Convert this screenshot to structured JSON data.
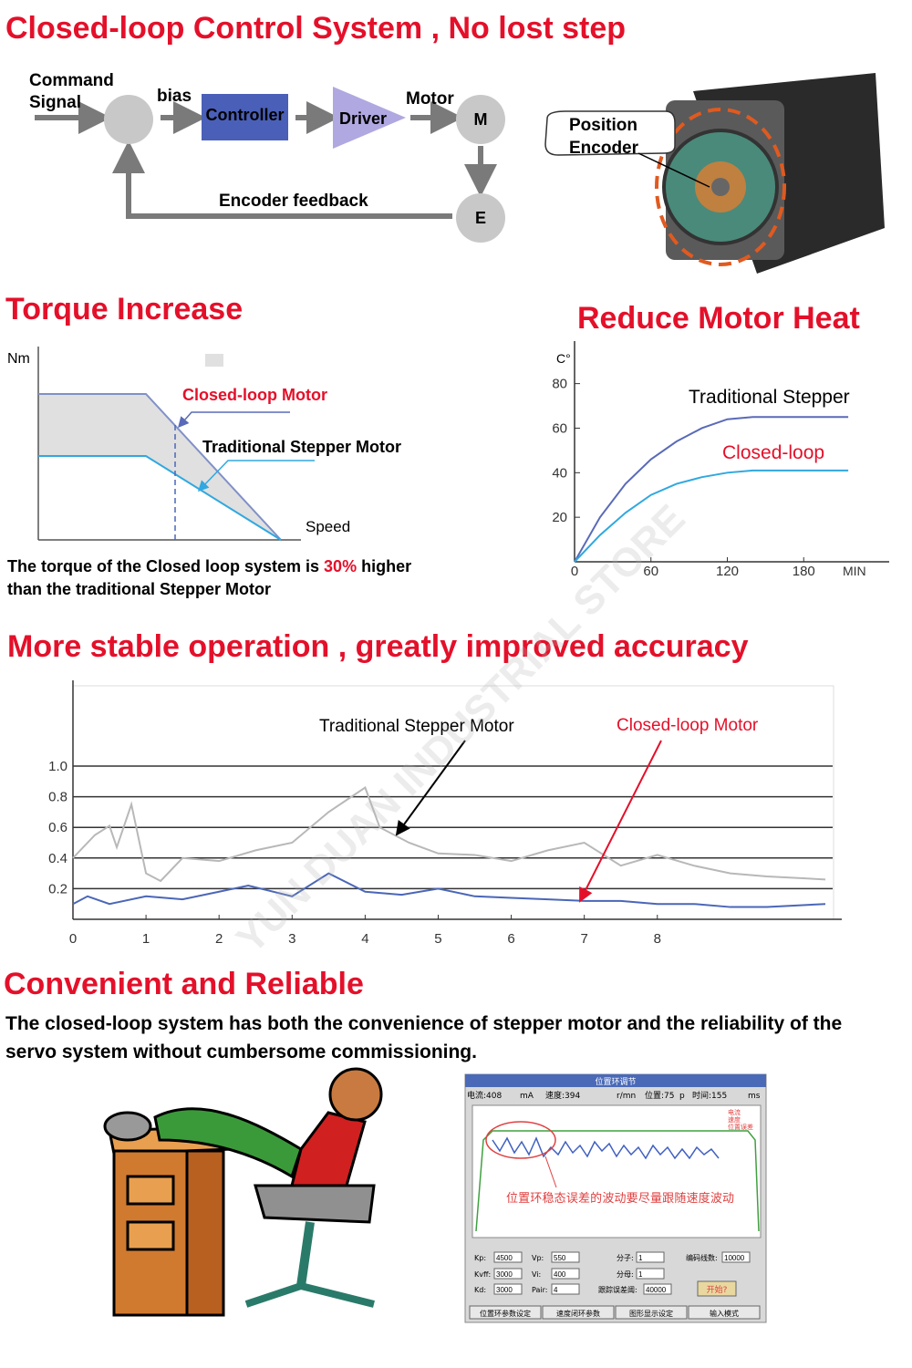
{
  "diagram": {
    "title": "Closed-loop Control System , No lost step",
    "input": "Command Signal",
    "bias": "bias",
    "controller": "Controller",
    "driver": "Driver",
    "motor_label": "Motor",
    "motor": "M",
    "encoder": "E",
    "feedback": "Encoder feedback",
    "callout": "Position Encoder"
  },
  "torque": {
    "title": "Torque Increase",
    "y_label": "Nm",
    "x_label": "Speed",
    "closed_label": "Closed-loop Motor",
    "traditional_label": "Traditional Stepper Motor",
    "caption_before": "The torque of the Closed loop system is ",
    "caption_highlight": "30%",
    "caption_after": " higher than the traditional Stepper Motor"
  },
  "heat": {
    "title": "Reduce Motor Heat",
    "y_label": "C°",
    "x_label": "MIN",
    "xlim": [
      0,
      240
    ],
    "ylim": [
      0,
      95
    ],
    "xticks": [
      0,
      60,
      120,
      180
    ],
    "yticks": [
      20,
      40,
      60,
      80
    ],
    "series": [
      {
        "name": "Traditional Stepper",
        "color": "#5a6ab8",
        "label_color": "#000000",
        "x": [
          0,
          20,
          40,
          60,
          80,
          100,
          120,
          140,
          160,
          180,
          215
        ],
        "values": [
          0,
          20,
          35,
          46,
          54,
          60,
          64,
          65,
          65,
          65,
          65
        ]
      },
      {
        "name": "Closed-loop",
        "color": "#30a8e0",
        "label_color": "#e4102a",
        "x": [
          0,
          20,
          40,
          60,
          80,
          100,
          120,
          140,
          160,
          180,
          215
        ],
        "values": [
          0,
          12,
          22,
          30,
          35,
          38,
          40,
          41,
          41,
          41,
          41
        ]
      }
    ]
  },
  "stability": {
    "title": "More stable operation , greatly improved accuracy",
    "xlim": [
      0,
      10.4
    ],
    "ylim": [
      0,
      1.5
    ],
    "xticks": [
      0,
      1,
      2,
      3,
      4,
      5,
      6,
      7,
      8
    ],
    "yticks": [
      0.2,
      0.4,
      0.6,
      0.8,
      {
        "value": 1,
        "label": "1.0"
      }
    ],
    "series": [
      {
        "name": "Traditional Stepper Motor",
        "color": "#b8b8b8",
        "label_color": "#000000",
        "x": [
          0,
          0.3,
          0.5,
          0.6,
          0.8,
          1,
          1.2,
          1.5,
          2,
          2.5,
          3,
          3.5,
          4,
          4.2,
          4.6,
          5,
          5.5,
          6,
          6.5,
          7,
          7.5,
          8,
          8.5,
          9,
          9.5,
          10.3
        ],
        "values": [
          0.4,
          0.55,
          0.61,
          0.47,
          0.75,
          0.3,
          0.25,
          0.4,
          0.38,
          0.45,
          0.5,
          0.7,
          0.86,
          0.6,
          0.5,
          0.43,
          0.42,
          0.38,
          0.45,
          0.5,
          0.35,
          0.42,
          0.35,
          0.3,
          0.28,
          0.26
        ]
      },
      {
        "name": "Closed-loop Motor",
        "color": "#4a66b8",
        "label_color": "#e4102a",
        "x": [
          0,
          0.2,
          0.5,
          1,
          1.5,
          2,
          2.4,
          3,
          3.5,
          4,
          4.5,
          5,
          5.5,
          6,
          6.5,
          7,
          7.5,
          8,
          8.5,
          9,
          9.5,
          10.3
        ],
        "values": [
          0.1,
          0.15,
          0.1,
          0.15,
          0.13,
          0.18,
          0.22,
          0.15,
          0.3,
          0.18,
          0.16,
          0.2,
          0.15,
          0.14,
          0.13,
          0.12,
          0.12,
          0.1,
          0.1,
          0.08,
          0.08,
          0.1
        ]
      }
    ]
  },
  "reliable": {
    "title": "Convenient and Reliable",
    "text": "The closed-loop system has both the convenience of  stepper motor and the reliability of the servo system without cumbersome commissioning."
  },
  "screen": {
    "title": "位置环调节",
    "readouts": [
      "电流:408",
      "mA",
      "速度:394",
      "r/mn",
      "位置:75",
      "p",
      "时间:155",
      "ms"
    ],
    "legend": [
      "电流",
      "速度",
      "位置误差"
    ],
    "note": "位置环稳态误差的波动要尽量跟随速度波动",
    "fields": [
      [
        "Kp:",
        "4500"
      ],
      [
        "Vp:",
        "550"
      ],
      [
        "分子:",
        "1"
      ],
      [
        "编码线数:",
        "10000"
      ],
      [
        "Kvff:",
        "3000"
      ],
      [
        "Vi:",
        "400"
      ],
      [
        "分母:",
        "1"
      ],
      [
        "Kd:",
        "3000"
      ],
      [
        "Pair:",
        "4"
      ],
      [
        "跟踪误差阈:",
        "40000"
      ]
    ],
    "button": "开始?",
    "tabs": [
      "位置环参数设定",
      "速度闭环参数",
      "图形显示设定",
      "输入模式"
    ]
  },
  "watermark": "YUN DUAN INDUSTRIAL STORE"
}
